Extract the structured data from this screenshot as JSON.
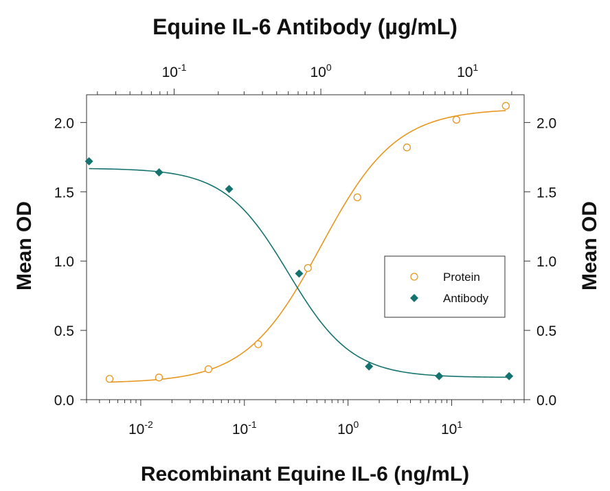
{
  "chart_data": {
    "type": "scatter",
    "title": "Equine IL-6 Antibody (µg/mL)",
    "xlabel": "Recombinant Equine IL-6 (ng/mL)",
    "ylabel": "Mean OD",
    "ylabel_right": "Mean OD",
    "x_scale": "log",
    "xlim": [
      0.003,
      50
    ],
    "ylim": [
      0,
      2.2
    ],
    "x_top_scale": "log",
    "x_top_lim": [
      0.0253,
      24.3
    ],
    "y_ticks": [
      {
        "value": 0.0,
        "label": "0.0"
      },
      {
        "value": 0.5,
        "label": "0.5"
      },
      {
        "value": 1.0,
        "label": "1.0"
      },
      {
        "value": 1.5,
        "label": "1.5"
      },
      {
        "value": 2.0,
        "label": "2.0"
      }
    ],
    "x_ticks": [
      {
        "value": 0.01,
        "base": "10",
        "exp": "-2"
      },
      {
        "value": 0.1,
        "base": "10",
        "exp": "-1"
      },
      {
        "value": 1,
        "base": "10",
        "exp": "0"
      },
      {
        "value": 10,
        "base": "10",
        "exp": "1"
      }
    ],
    "x_top_ticks": [
      {
        "value": 0.1,
        "base": "10",
        "exp": "-1"
      },
      {
        "value": 1,
        "base": "10",
        "exp": "0"
      },
      {
        "value": 10,
        "base": "10",
        "exp": "1"
      }
    ],
    "series": [
      {
        "name": "Protein",
        "axis": "bottom",
        "marker": "circle-open",
        "color": "#E8961E",
        "x": [
          0.005,
          0.015,
          0.045,
          0.136,
          0.41,
          1.23,
          3.7,
          11.1,
          33.3
        ],
        "y": [
          0.15,
          0.16,
          0.22,
          0.4,
          0.95,
          1.46,
          1.82,
          2.02,
          2.12
        ],
        "fit": {
          "bottom": 0.12,
          "top": 2.1,
          "ec50": 0.55,
          "hill": 1.2
        }
      },
      {
        "name": "Antibody",
        "axis": "top",
        "marker": "diamond-filled",
        "color": "#14736E",
        "x": [
          0.0263,
          0.079,
          0.237,
          0.711,
          2.13,
          6.4,
          19.2
        ],
        "y": [
          1.72,
          1.64,
          1.52,
          0.91,
          0.24,
          0.17,
          0.17
        ],
        "fit": {
          "bottom": 0.16,
          "top": 1.67,
          "ec50": 0.6,
          "hill": 2.0
        }
      }
    ],
    "grid": false,
    "legend_position": "right"
  }
}
